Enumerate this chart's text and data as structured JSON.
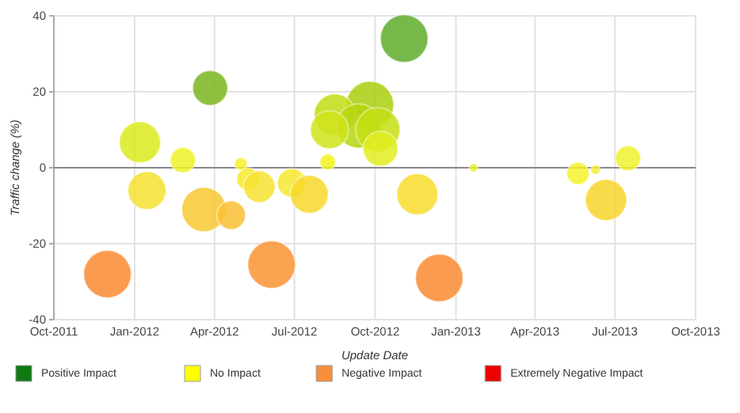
{
  "chart_data": {
    "type": "bubble",
    "xlabel": "Update Date",
    "ylabel": "Traffic change (%)",
    "xlim": [
      "2011-10-01",
      "2013-10-01"
    ],
    "xticks": [
      {
        "value": "2011-10-01",
        "label": "Oct-2011"
      },
      {
        "value": "2012-01-01",
        "label": "Jan-2012"
      },
      {
        "value": "2012-04-01",
        "label": "Apr-2012"
      },
      {
        "value": "2012-07-01",
        "label": "Jul-2012"
      },
      {
        "value": "2012-10-01",
        "label": "Oct-2012"
      },
      {
        "value": "2013-01-01",
        "label": "Jan-2013"
      },
      {
        "value": "2013-04-01",
        "label": "Apr-2013"
      },
      {
        "value": "2013-07-01",
        "label": "Jul-2013"
      },
      {
        "value": "2013-10-01",
        "label": "Oct-2013"
      }
    ],
    "ylim": [
      -40,
      40
    ],
    "yticks": [
      -40,
      -20,
      0,
      20,
      40
    ],
    "grid": true,
    "ref_lines": [
      {
        "axis": "y",
        "value": 0,
        "color": "#888888"
      }
    ],
    "annotations": [
      "Positive Impact",
      "No Impact",
      "Negative Impact",
      "Extremely Negative Impact"
    ],
    "series": [
      {
        "x": [
          "2012-03-27",
          "2012-11-03",
          "2012-09-25",
          "2012-08-16",
          "2012-09-12",
          "2012-10-04",
          "2012-08-10",
          "2012-01-07",
          "2012-10-07",
          "2012-02-25",
          "2012-05-01",
          "2012-08-08",
          "2013-01-21",
          "2013-06-09",
          "2013-05-20",
          "2013-07-16",
          "2012-05-09",
          "2012-06-28",
          "2012-05-22",
          "2012-01-15",
          "2012-07-18",
          "2012-11-18",
          "2013-06-21",
          "2012-03-20",
          "2012-04-20",
          "2012-06-05",
          "2011-12-01",
          "2012-12-13"
        ],
        "values": [
          21,
          34,
          16.5,
          14,
          11,
          10,
          10,
          6.7,
          5,
          2,
          1,
          1.5,
          0,
          -0.5,
          -1.5,
          2.5,
          -3,
          -4,
          -5,
          -6,
          -7,
          -7,
          -8.5,
          -11,
          -12.5,
          -25.5,
          -28,
          -29
        ],
        "sizes": [
          0.54,
          1,
          1,
          0.75,
          0.87,
          0.87,
          0.64,
          0.75,
          0.54,
          0.28,
          0.07,
          0.11,
          0.03,
          0.04,
          0.22,
          0.28,
          0.22,
          0.36,
          0.44,
          0.64,
          0.64,
          0.75,
          0.75,
          0.87,
          0.36,
          1,
          1,
          1
        ],
        "colors": [
          "#7ab51d",
          "#5fab2a",
          "#a9cf0e",
          "#c3dc12",
          "#b5d50e",
          "#c4df14",
          "#cfe31a",
          "#dcea1c",
          "#e0ed20",
          "#eef226",
          "#f4f22a",
          "#f2f21e",
          "#eaf02e",
          "#f0f03a",
          "#f4f22a",
          "#eef22a",
          "#f4ea2c",
          "#f6e82e",
          "#f6e230",
          "#f6e030",
          "#f8d82c",
          "#f8dc2c",
          "#f8d42c",
          "#f9c832",
          "#f8c032",
          "#f99434",
          "#f98a30",
          "#f98a30"
        ]
      }
    ]
  }
}
